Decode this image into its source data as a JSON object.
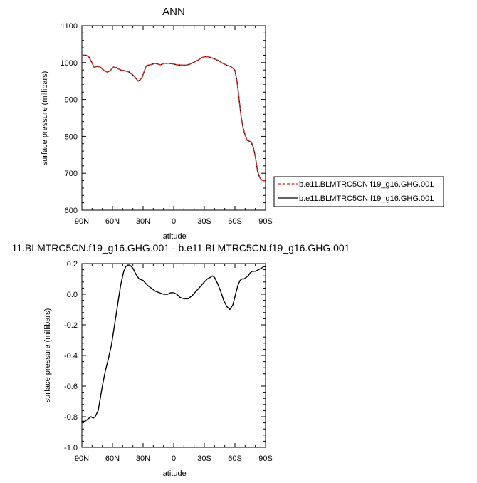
{
  "chart_data": [
    {
      "type": "line",
      "title": "ANN",
      "xlabel": "latitude",
      "ylabel": "surface pressure (millibars)",
      "xlim": [
        -90,
        90
      ],
      "ylim": [
        600,
        1100
      ],
      "x_ticks": [
        {
          "value": -90,
          "label": "90N"
        },
        {
          "value": -60,
          "label": "60N"
        },
        {
          "value": -30,
          "label": "30N"
        },
        {
          "value": 0,
          "label": "0"
        },
        {
          "value": 30,
          "label": "30S"
        },
        {
          "value": 60,
          "label": "60S"
        },
        {
          "value": 90,
          "label": "90S"
        }
      ],
      "y_ticks": [
        {
          "value": 600,
          "label": "600"
        },
        {
          "value": 700,
          "label": "700"
        },
        {
          "value": 800,
          "label": "800"
        },
        {
          "value": 900,
          "label": "900"
        },
        {
          "value": 1000,
          "label": "1000"
        },
        {
          "value": 1100,
          "label": "1100"
        }
      ],
      "legend": "outside-right",
      "series": [
        {
          "name": "b.e11.BLMTRC5CN.f19_g16.GHG.001",
          "color": "#e8251f",
          "dash": "dashed",
          "x": [
            -90,
            -86,
            -83,
            -80,
            -78,
            -75,
            -72,
            -68,
            -65,
            -62,
            -59,
            -56,
            -52,
            -48,
            -44,
            -41,
            -38,
            -35,
            -33,
            -31,
            -29,
            -27,
            -25,
            -22,
            -18,
            -13,
            -9,
            -5,
            -1,
            3,
            8,
            12,
            16,
            20,
            24,
            28,
            31,
            33,
            36,
            40,
            44,
            48,
            52,
            56,
            58,
            60,
            62,
            64,
            66,
            68,
            70,
            72,
            74,
            76,
            78,
            80,
            82,
            84,
            86,
            88,
            90
          ],
          "y": [
            1020,
            1020,
            1015,
            999,
            987,
            990,
            988,
            978,
            974,
            979,
            988,
            986,
            980,
            978,
            975,
            969,
            961,
            950,
            953,
            960,
            975,
            991,
            993,
            995,
            998,
            994,
            998,
            998,
            997,
            994,
            993,
            993,
            996,
            1001,
            1007,
            1014,
            1016,
            1016,
            1014,
            1010,
            1005,
            998,
            993,
            989,
            985,
            979,
            950,
            903,
            855,
            822,
            803,
            789,
            787,
            785,
            770,
            745,
            708,
            690,
            682,
            680,
            680
          ]
        },
        {
          "name": "b.e11.BLMTRC5CN.f19_g16.GHG.001",
          "color": "#000000",
          "dash": "solid",
          "x": [
            -90,
            -86,
            -83,
            -80,
            -78,
            -75,
            -72,
            -68,
            -65,
            -62,
            -59,
            -56,
            -52,
            -48,
            -44,
            -41,
            -38,
            -35,
            -33,
            -31,
            -29,
            -27,
            -25,
            -22,
            -18,
            -13,
            -9,
            -5,
            -1,
            3,
            8,
            12,
            16,
            20,
            24,
            28,
            31,
            33,
            36,
            40,
            44,
            48,
            52,
            56,
            58,
            60,
            62,
            64,
            66,
            68,
            70,
            72,
            74,
            76,
            78,
            80,
            82,
            84,
            86,
            88,
            90
          ],
          "y": [
            1020,
            1020,
            1015,
            999,
            987,
            990,
            988,
            978,
            974,
            979,
            988,
            986,
            980,
            978,
            975,
            969,
            961,
            950,
            953,
            960,
            975,
            991,
            993,
            995,
            998,
            994,
            998,
            998,
            997,
            994,
            993,
            993,
            996,
            1001,
            1007,
            1014,
            1016,
            1016,
            1014,
            1010,
            1005,
            998,
            993,
            989,
            985,
            979,
            950,
            903,
            855,
            822,
            803,
            789,
            787,
            785,
            770,
            745,
            708,
            690,
            682,
            680,
            680
          ]
        }
      ]
    },
    {
      "type": "line",
      "title": "11.BLMTRC5CN.f19_g16.GHG.001 - b.e11.BLMTRC5CN.f19_g16.GHG.001",
      "xlabel": "latitude",
      "ylabel": "surface pressure (millibars)",
      "xlim": [
        -90,
        90
      ],
      "ylim": [
        -1.0,
        0.2
      ],
      "x_ticks": [
        {
          "value": -90,
          "label": "90N"
        },
        {
          "value": -60,
          "label": "60N"
        },
        {
          "value": -30,
          "label": "30N"
        },
        {
          "value": 0,
          "label": "0"
        },
        {
          "value": 30,
          "label": "30S"
        },
        {
          "value": 60,
          "label": "60S"
        },
        {
          "value": 90,
          "label": "90S"
        }
      ],
      "y_ticks": [
        {
          "value": -1.0,
          "label": "-1.0"
        },
        {
          "value": -0.8,
          "label": "-0.8"
        },
        {
          "value": -0.6,
          "label": "-0.6"
        },
        {
          "value": -0.4,
          "label": "-0.4"
        },
        {
          "value": -0.2,
          "label": "-0.2"
        },
        {
          "value": 0.0,
          "label": "0.0"
        },
        {
          "value": 0.2,
          "label": "0.2"
        }
      ],
      "series": [
        {
          "color": "#000000",
          "dash": "solid",
          "x": [
            -90,
            -87,
            -85,
            -83,
            -81,
            -79,
            -77,
            -74,
            -72,
            -70,
            -67,
            -64,
            -61,
            -58,
            -55,
            -52,
            -49,
            -47,
            -45,
            -43,
            -40,
            -37,
            -34,
            -30,
            -26,
            -22,
            -18,
            -14,
            -10,
            -6,
            -3,
            0,
            3,
            6,
            10,
            14,
            18,
            22,
            26,
            30,
            33,
            36,
            38,
            40,
            43,
            46,
            49,
            52,
            55,
            58,
            61,
            63,
            65,
            67,
            69,
            71,
            73,
            75,
            77,
            80,
            83,
            86,
            88,
            90
          ],
          "y": [
            -0.83,
            -0.83,
            -0.82,
            -0.81,
            -0.8,
            -0.81,
            -0.8,
            -0.76,
            -0.68,
            -0.6,
            -0.5,
            -0.42,
            -0.33,
            -0.2,
            -0.07,
            0.06,
            0.15,
            0.18,
            0.19,
            0.19,
            0.17,
            0.13,
            0.1,
            0.09,
            0.06,
            0.04,
            0.02,
            0.01,
            0.0,
            0.0,
            0.01,
            0.01,
            0.0,
            -0.02,
            -0.03,
            -0.03,
            -0.01,
            0.02,
            0.05,
            0.08,
            0.1,
            0.11,
            0.12,
            0.11,
            0.07,
            0.02,
            -0.04,
            -0.08,
            -0.1,
            -0.07,
            0.01,
            0.06,
            0.09,
            0.1,
            0.1,
            0.11,
            0.12,
            0.14,
            0.15,
            0.15,
            0.16,
            0.17,
            0.18,
            0.18
          ]
        }
      ]
    }
  ]
}
